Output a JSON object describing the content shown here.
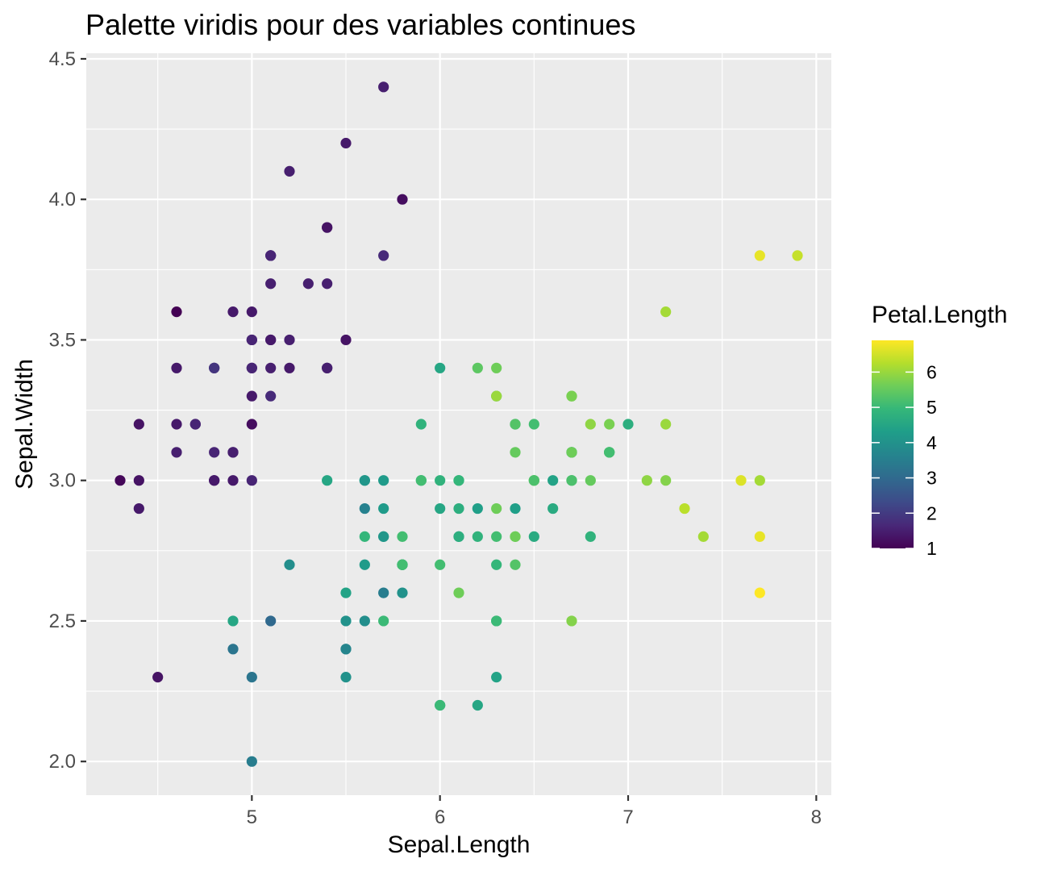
{
  "chart_data": {
    "type": "scatter",
    "title": "Palette viridis pour des variables continues",
    "xlabel": "Sepal.Length",
    "ylabel": "Sepal.Width",
    "xlim": [
      4.12,
      8.08
    ],
    "ylim": [
      1.88,
      4.52
    ],
    "x_ticks": [
      5,
      6,
      7,
      8
    ],
    "x_tick_labels": [
      "5",
      "6",
      "7",
      "8"
    ],
    "y_ticks": [
      2.0,
      2.5,
      3.0,
      3.5,
      4.0,
      4.5
    ],
    "y_tick_labels": [
      "2.0",
      "2.5",
      "3.0",
      "3.5",
      "4.0",
      "4.5"
    ],
    "grid": true,
    "color_scale": {
      "name": "viridis",
      "title": "Petal.Length",
      "range": [
        1,
        6.9
      ],
      "ticks": [
        1,
        2,
        3,
        4,
        5,
        6
      ],
      "tick_labels": [
        "1",
        "2",
        "3",
        "4",
        "5",
        "6"
      ],
      "colors": [
        "#440154",
        "#482878",
        "#3E4A89",
        "#31688E",
        "#26828E",
        "#1F9E89",
        "#35B779",
        "#6DCD59",
        "#B4DE2C",
        "#FDE725"
      ],
      "legend_position": "right"
    },
    "background_color": "#EBEBEB",
    "grid_color": "#FFFFFF",
    "points": [
      {
        "x": 5.1,
        "y": 3.5,
        "c": 1.4
      },
      {
        "x": 4.9,
        "y": 3.0,
        "c": 1.4
      },
      {
        "x": 4.7,
        "y": 3.2,
        "c": 1.3
      },
      {
        "x": 4.6,
        "y": 3.1,
        "c": 1.5
      },
      {
        "x": 5.0,
        "y": 3.6,
        "c": 1.4
      },
      {
        "x": 5.4,
        "y": 3.9,
        "c": 1.7
      },
      {
        "x": 4.6,
        "y": 3.4,
        "c": 1.4
      },
      {
        "x": 5.0,
        "y": 3.4,
        "c": 1.5
      },
      {
        "x": 4.4,
        "y": 2.9,
        "c": 1.4
      },
      {
        "x": 4.9,
        "y": 3.1,
        "c": 1.5
      },
      {
        "x": 5.4,
        "y": 3.7,
        "c": 1.5
      },
      {
        "x": 4.8,
        "y": 3.4,
        "c": 1.6
      },
      {
        "x": 4.8,
        "y": 3.0,
        "c": 1.4
      },
      {
        "x": 4.3,
        "y": 3.0,
        "c": 1.1
      },
      {
        "x": 5.8,
        "y": 4.0,
        "c": 1.2
      },
      {
        "x": 5.7,
        "y": 4.4,
        "c": 1.5
      },
      {
        "x": 5.4,
        "y": 3.9,
        "c": 1.3
      },
      {
        "x": 5.1,
        "y": 3.5,
        "c": 1.4
      },
      {
        "x": 5.7,
        "y": 3.8,
        "c": 1.7
      },
      {
        "x": 5.1,
        "y": 3.8,
        "c": 1.5
      },
      {
        "x": 5.4,
        "y": 3.4,
        "c": 1.7
      },
      {
        "x": 5.1,
        "y": 3.7,
        "c": 1.5
      },
      {
        "x": 4.6,
        "y": 3.6,
        "c": 1.0
      },
      {
        "x": 5.1,
        "y": 3.3,
        "c": 1.7
      },
      {
        "x": 4.8,
        "y": 3.4,
        "c": 1.9
      },
      {
        "x": 5.0,
        "y": 3.0,
        "c": 1.6
      },
      {
        "x": 5.0,
        "y": 3.4,
        "c": 1.6
      },
      {
        "x": 5.2,
        "y": 3.5,
        "c": 1.5
      },
      {
        "x": 5.2,
        "y": 3.4,
        "c": 1.4
      },
      {
        "x": 4.7,
        "y": 3.2,
        "c": 1.6
      },
      {
        "x": 4.8,
        "y": 3.1,
        "c": 1.6
      },
      {
        "x": 5.4,
        "y": 3.4,
        "c": 1.5
      },
      {
        "x": 5.2,
        "y": 4.1,
        "c": 1.5
      },
      {
        "x": 5.5,
        "y": 4.2,
        "c": 1.4
      },
      {
        "x": 4.9,
        "y": 3.1,
        "c": 1.5
      },
      {
        "x": 5.0,
        "y": 3.2,
        "c": 1.2
      },
      {
        "x": 5.5,
        "y": 3.5,
        "c": 1.3
      },
      {
        "x": 4.9,
        "y": 3.6,
        "c": 1.4
      },
      {
        "x": 4.4,
        "y": 3.0,
        "c": 1.3
      },
      {
        "x": 5.1,
        "y": 3.4,
        "c": 1.5
      },
      {
        "x": 5.0,
        "y": 3.5,
        "c": 1.3
      },
      {
        "x": 4.5,
        "y": 2.3,
        "c": 1.3
      },
      {
        "x": 4.4,
        "y": 3.2,
        "c": 1.3
      },
      {
        "x": 5.0,
        "y": 3.5,
        "c": 1.6
      },
      {
        "x": 5.1,
        "y": 3.8,
        "c": 1.9
      },
      {
        "x": 4.8,
        "y": 3.0,
        "c": 1.4
      },
      {
        "x": 5.1,
        "y": 3.8,
        "c": 1.6
      },
      {
        "x": 4.6,
        "y": 3.2,
        "c": 1.4
      },
      {
        "x": 5.3,
        "y": 3.7,
        "c": 1.5
      },
      {
        "x": 5.0,
        "y": 3.3,
        "c": 1.4
      },
      {
        "x": 7.0,
        "y": 3.2,
        "c": 4.7
      },
      {
        "x": 6.4,
        "y": 3.2,
        "c": 4.5
      },
      {
        "x": 6.9,
        "y": 3.1,
        "c": 4.9
      },
      {
        "x": 5.5,
        "y": 2.3,
        "c": 4.0
      },
      {
        "x": 6.5,
        "y": 2.8,
        "c": 4.6
      },
      {
        "x": 5.7,
        "y": 2.8,
        "c": 4.5
      },
      {
        "x": 6.3,
        "y": 3.3,
        "c": 4.7
      },
      {
        "x": 4.9,
        "y": 2.4,
        "c": 3.3
      },
      {
        "x": 6.6,
        "y": 2.9,
        "c": 4.6
      },
      {
        "x": 5.2,
        "y": 2.7,
        "c": 3.9
      },
      {
        "x": 5.0,
        "y": 2.0,
        "c": 3.5
      },
      {
        "x": 5.9,
        "y": 3.0,
        "c": 4.2
      },
      {
        "x": 6.0,
        "y": 2.2,
        "c": 4.0
      },
      {
        "x": 6.1,
        "y": 2.9,
        "c": 4.7
      },
      {
        "x": 5.6,
        "y": 2.9,
        "c": 3.6
      },
      {
        "x": 6.7,
        "y": 3.1,
        "c": 4.4
      },
      {
        "x": 5.6,
        "y": 3.0,
        "c": 4.5
      },
      {
        "x": 5.8,
        "y": 2.7,
        "c": 4.1
      },
      {
        "x": 6.2,
        "y": 2.2,
        "c": 4.5
      },
      {
        "x": 5.6,
        "y": 2.5,
        "c": 3.9
      },
      {
        "x": 5.9,
        "y": 3.2,
        "c": 4.8
      },
      {
        "x": 6.1,
        "y": 2.8,
        "c": 4.0
      },
      {
        "x": 6.3,
        "y": 2.5,
        "c": 4.9
      },
      {
        "x": 6.1,
        "y": 2.8,
        "c": 4.7
      },
      {
        "x": 6.4,
        "y": 2.9,
        "c": 4.3
      },
      {
        "x": 6.6,
        "y": 3.0,
        "c": 4.4
      },
      {
        "x": 6.8,
        "y": 2.8,
        "c": 4.8
      },
      {
        "x": 6.7,
        "y": 3.0,
        "c": 5.0
      },
      {
        "x": 6.0,
        "y": 2.9,
        "c": 4.5
      },
      {
        "x": 5.7,
        "y": 2.6,
        "c": 3.5
      },
      {
        "x": 5.5,
        "y": 2.4,
        "c": 3.8
      },
      {
        "x": 5.5,
        "y": 2.4,
        "c": 3.7
      },
      {
        "x": 5.8,
        "y": 2.7,
        "c": 3.9
      },
      {
        "x": 6.0,
        "y": 2.7,
        "c": 5.1
      },
      {
        "x": 5.4,
        "y": 3.0,
        "c": 4.5
      },
      {
        "x": 6.0,
        "y": 3.4,
        "c": 4.5
      },
      {
        "x": 6.7,
        "y": 3.1,
        "c": 4.7
      },
      {
        "x": 6.3,
        "y": 2.3,
        "c": 4.4
      },
      {
        "x": 5.6,
        "y": 3.0,
        "c": 4.1
      },
      {
        "x": 5.5,
        "y": 2.5,
        "c": 4.0
      },
      {
        "x": 5.5,
        "y": 2.6,
        "c": 4.4
      },
      {
        "x": 6.1,
        "y": 3.0,
        "c": 4.6
      },
      {
        "x": 5.8,
        "y": 2.6,
        "c": 4.0
      },
      {
        "x": 5.0,
        "y": 2.3,
        "c": 3.3
      },
      {
        "x": 5.6,
        "y": 2.7,
        "c": 4.2
      },
      {
        "x": 5.7,
        "y": 3.0,
        "c": 4.2
      },
      {
        "x": 5.7,
        "y": 2.9,
        "c": 4.2
      },
      {
        "x": 6.2,
        "y": 2.9,
        "c": 4.3
      },
      {
        "x": 5.1,
        "y": 2.5,
        "c": 3.0
      },
      {
        "x": 5.7,
        "y": 2.8,
        "c": 4.1
      },
      {
        "x": 6.3,
        "y": 3.3,
        "c": 6.0
      },
      {
        "x": 5.8,
        "y": 2.7,
        "c": 5.1
      },
      {
        "x": 7.1,
        "y": 3.0,
        "c": 5.9
      },
      {
        "x": 6.3,
        "y": 2.9,
        "c": 5.6
      },
      {
        "x": 6.5,
        "y": 3.0,
        "c": 5.8
      },
      {
        "x": 7.6,
        "y": 3.0,
        "c": 6.6
      },
      {
        "x": 4.9,
        "y": 2.5,
        "c": 4.5
      },
      {
        "x": 7.3,
        "y": 2.9,
        "c": 6.3
      },
      {
        "x": 6.7,
        "y": 2.5,
        "c": 5.8
      },
      {
        "x": 7.2,
        "y": 3.6,
        "c": 6.1
      },
      {
        "x": 6.5,
        "y": 3.2,
        "c": 5.1
      },
      {
        "x": 6.4,
        "y": 2.7,
        "c": 5.3
      },
      {
        "x": 6.8,
        "y": 3.0,
        "c": 5.5
      },
      {
        "x": 5.7,
        "y": 2.5,
        "c": 5.0
      },
      {
        "x": 5.8,
        "y": 2.8,
        "c": 5.1
      },
      {
        "x": 6.4,
        "y": 3.2,
        "c": 5.3
      },
      {
        "x": 6.5,
        "y": 3.0,
        "c": 5.5
      },
      {
        "x": 7.7,
        "y": 3.8,
        "c": 6.7
      },
      {
        "x": 7.7,
        "y": 2.6,
        "c": 6.9
      },
      {
        "x": 6.0,
        "y": 2.2,
        "c": 5.0
      },
      {
        "x": 6.9,
        "y": 3.2,
        "c": 5.7
      },
      {
        "x": 5.6,
        "y": 2.8,
        "c": 4.9
      },
      {
        "x": 7.7,
        "y": 2.8,
        "c": 6.7
      },
      {
        "x": 6.3,
        "y": 2.7,
        "c": 4.9
      },
      {
        "x": 6.7,
        "y": 3.3,
        "c": 5.7
      },
      {
        "x": 7.2,
        "y": 3.2,
        "c": 6.0
      },
      {
        "x": 6.2,
        "y": 2.8,
        "c": 4.8
      },
      {
        "x": 6.1,
        "y": 3.0,
        "c": 4.9
      },
      {
        "x": 6.4,
        "y": 2.8,
        "c": 5.6
      },
      {
        "x": 7.2,
        "y": 3.0,
        "c": 5.8
      },
      {
        "x": 7.4,
        "y": 2.8,
        "c": 6.1
      },
      {
        "x": 7.9,
        "y": 3.8,
        "c": 6.4
      },
      {
        "x": 6.4,
        "y": 2.8,
        "c": 5.6
      },
      {
        "x": 6.3,
        "y": 2.8,
        "c": 5.1
      },
      {
        "x": 6.1,
        "y": 2.6,
        "c": 5.6
      },
      {
        "x": 7.7,
        "y": 3.0,
        "c": 6.1
      },
      {
        "x": 6.3,
        "y": 3.4,
        "c": 5.6
      },
      {
        "x": 6.4,
        "y": 3.1,
        "c": 5.5
      },
      {
        "x": 6.0,
        "y": 3.0,
        "c": 4.8
      },
      {
        "x": 6.9,
        "y": 3.1,
        "c": 5.4
      },
      {
        "x": 6.7,
        "y": 3.1,
        "c": 5.6
      },
      {
        "x": 6.9,
        "y": 3.1,
        "c": 5.1
      },
      {
        "x": 5.8,
        "y": 2.7,
        "c": 5.1
      },
      {
        "x": 6.8,
        "y": 3.2,
        "c": 5.9
      },
      {
        "x": 6.7,
        "y": 3.3,
        "c": 5.7
      },
      {
        "x": 6.7,
        "y": 3.0,
        "c": 5.2
      },
      {
        "x": 6.3,
        "y": 2.5,
        "c": 5.0
      },
      {
        "x": 6.5,
        "y": 3.0,
        "c": 5.2
      },
      {
        "x": 6.2,
        "y": 3.4,
        "c": 5.4
      },
      {
        "x": 5.9,
        "y": 3.0,
        "c": 5.1
      }
    ]
  }
}
